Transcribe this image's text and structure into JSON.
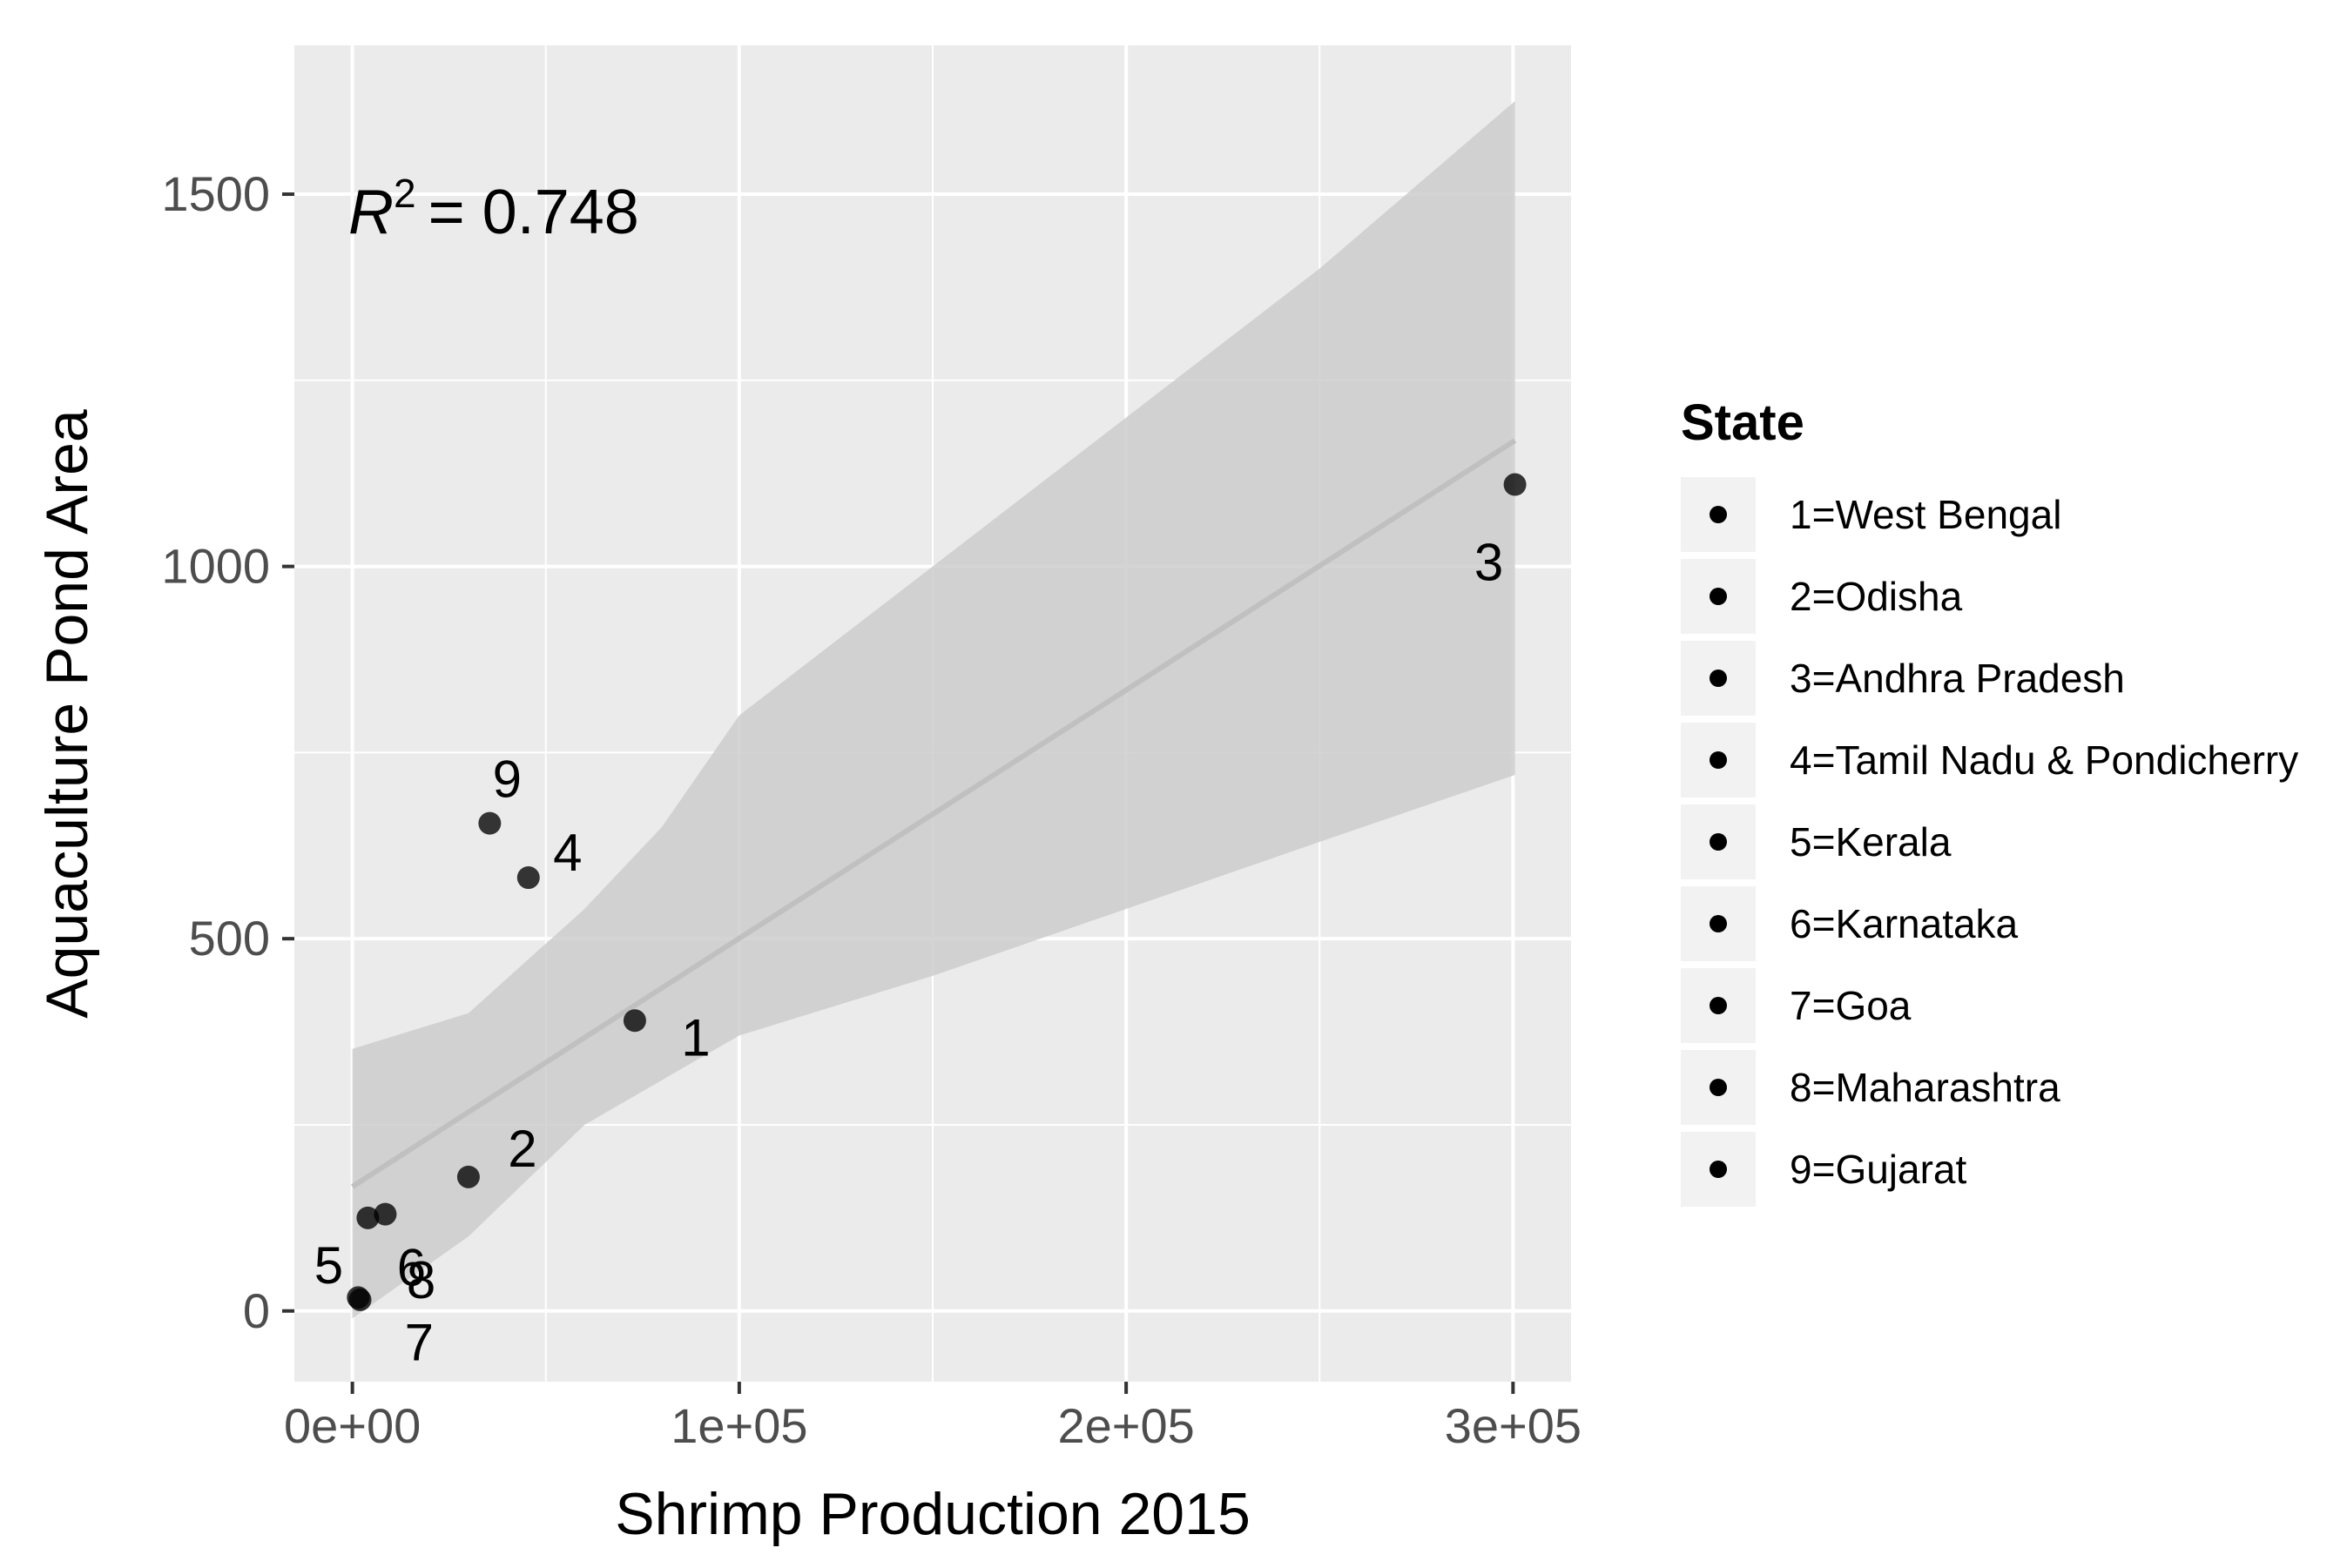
{
  "chart_data": {
    "type": "scatter",
    "xlabel": "Shrimp Production 2015",
    "ylabel": "Aquaculture Pond Area",
    "xlim": [
      -15000,
      315000
    ],
    "ylim": [
      -95,
      1700
    ],
    "x_ticks": [
      {
        "value": 0,
        "label": "0e+00"
      },
      {
        "value": 100000,
        "label": "1e+05"
      },
      {
        "value": 200000,
        "label": "2e+05"
      },
      {
        "value": 300000,
        "label": "3e+05"
      }
    ],
    "x_minor": [
      50000,
      150000,
      250000
    ],
    "y_ticks": [
      {
        "value": 0,
        "label": "0"
      },
      {
        "value": 500,
        "label": "500"
      },
      {
        "value": 1000,
        "label": "1000"
      },
      {
        "value": 1500,
        "label": "1500"
      }
    ],
    "y_minor": [
      250,
      750,
      1250
    ],
    "points": [
      {
        "id": "1",
        "x": 73000,
        "y": 390
      },
      {
        "id": "2",
        "x": 30000,
        "y": 180
      },
      {
        "id": "3",
        "x": 300500,
        "y": 1110
      },
      {
        "id": "4",
        "x": 45500,
        "y": 582
      },
      {
        "id": "5",
        "x": 4000,
        "y": 125
      },
      {
        "id": "6",
        "x": 8500,
        "y": 130
      },
      {
        "id": "7",
        "x": 1500,
        "y": 18
      },
      {
        "id": "8",
        "x": 2000,
        "y": 15
      },
      {
        "id": "9",
        "x": 35500,
        "y": 655
      }
    ],
    "regression": {
      "intercept": 167,
      "slope": 0.003335,
      "x_range": [
        0,
        300500
      ]
    },
    "confidence_band": {
      "lower": [
        [
          0,
          -10
        ],
        [
          30000,
          100
        ],
        [
          60000,
          250
        ],
        [
          80000,
          310
        ],
        [
          100000,
          370
        ],
        [
          150000,
          450
        ],
        [
          200000,
          540
        ],
        [
          250000,
          630
        ],
        [
          300500,
          720
        ]
      ],
      "upper": [
        [
          0,
          352
        ],
        [
          30000,
          400
        ],
        [
          45000,
          470
        ],
        [
          60000,
          540
        ],
        [
          80000,
          650
        ],
        [
          100000,
          800
        ],
        [
          150000,
          1000
        ],
        [
          200000,
          1200
        ],
        [
          250000,
          1400
        ],
        [
          300500,
          1625
        ]
      ]
    },
    "annotation": {
      "r2_prefix": "R",
      "r2_sup": "2",
      "r2_text": "= 0.748"
    },
    "legend": {
      "title": "State",
      "position": "right",
      "entries": [
        "1=West Bengal",
        "2=Odisha",
        "3=Andhra Pradesh",
        "4=Tamil Nadu & Pondicherry",
        "5=Kerala",
        "6=Karnataka",
        "7=Goa",
        "8=Maharashtra",
        "9=Gujarat"
      ]
    },
    "colors": {
      "panel": "#ebebeb",
      "grid": "#ffffff",
      "point": "#000000",
      "band": "#cccccc",
      "line": "#c0c0c0"
    }
  }
}
